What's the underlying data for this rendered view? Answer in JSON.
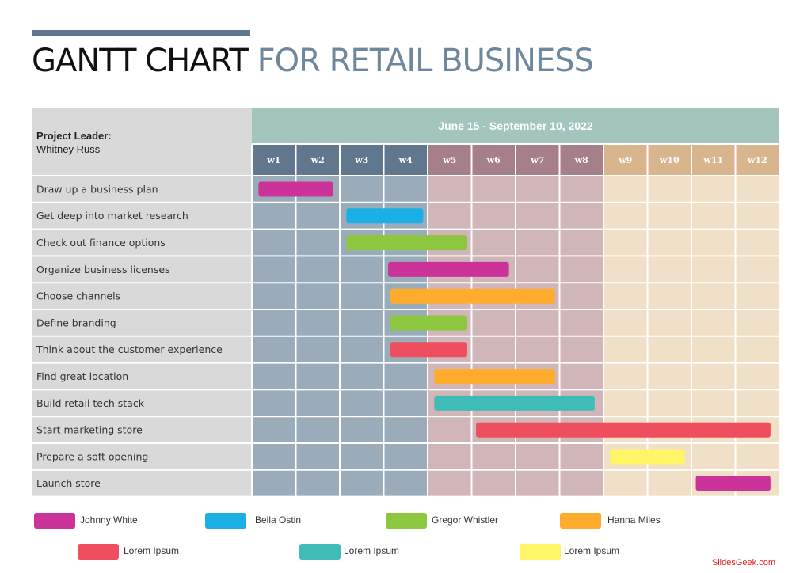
{
  "title": {
    "part1": "GANTT CHART",
    "part2": "FOR RETAIL BUSINESS"
  },
  "leader": {
    "label": "Project Leader:",
    "name": "Whitney Russ"
  },
  "chart_data": {
    "type": "gantt",
    "period_label": "June 15 - September 10, 2022",
    "weeks": [
      "w1",
      "w2",
      "w3",
      "w4",
      "w5",
      "w6",
      "w7",
      "w8",
      "w9",
      "w10",
      "w11",
      "w12"
    ],
    "phase_colors": {
      "header": [
        "#61778e",
        "#61778e",
        "#61778e",
        "#61778e",
        "#a67f89",
        "#a67f89",
        "#a67f89",
        "#a67f89",
        "#d8b58c",
        "#d8b58c",
        "#d8b58c",
        "#d8b58c"
      ],
      "cell": [
        "#9aacba",
        "#9aacba",
        "#9aacba",
        "#9aacba",
        "#d0b5b9",
        "#d0b5b9",
        "#d0b5b9",
        "#d0b5b9",
        "#f0e0c8",
        "#f0e0c8",
        "#f0e0c8",
        "#f0e0c8"
      ]
    },
    "period_color": "#a3c5bd",
    "task_label_bg": "#d9d9d9",
    "tasks": [
      {
        "name": "Draw up a business plan",
        "start": 0.15,
        "end": 1.85,
        "color": "#cc3399"
      },
      {
        "name": "Get deep into market research",
        "start": 2.15,
        "end": 3.9,
        "color": "#1ab0e6"
      },
      {
        "name": "Check out finance options",
        "start": 2.15,
        "end": 4.9,
        "color": "#8dc63f"
      },
      {
        "name": "Organize business licenses",
        "start": 3.1,
        "end": 5.85,
        "color": "#cc3399"
      },
      {
        "name": "Choose channels",
        "start": 3.15,
        "end": 6.9,
        "color": "#ffab2e"
      },
      {
        "name": "Define branding",
        "start": 3.15,
        "end": 4.9,
        "color": "#8dc63f"
      },
      {
        "name": "Think about the customer experience",
        "start": 3.15,
        "end": 4.9,
        "color": "#ef4e5e"
      },
      {
        "name": "Find great location",
        "start": 4.15,
        "end": 6.9,
        "color": "#ffab2e"
      },
      {
        "name": "Build retail tech stack",
        "start": 4.15,
        "end": 7.8,
        "color": "#3fbcb5"
      },
      {
        "name": "Start marketing store",
        "start": 5.1,
        "end": 11.8,
        "color": "#ef4e5e"
      },
      {
        "name": "Prepare a soft opening",
        "start": 8.15,
        "end": 9.85,
        "color": "#fff566"
      },
      {
        "name": "Launch store",
        "start": 10.1,
        "end": 11.8,
        "color": "#cc3399"
      }
    ],
    "legend": [
      {
        "label": "Johnny White",
        "color": "#cc3399"
      },
      {
        "label": "Bella Ostin",
        "color": "#1ab0e6"
      },
      {
        "label": "Gregor Whistler",
        "color": "#8dc63f"
      },
      {
        "label": "Hanna Miles",
        "color": "#ffab2e"
      },
      {
        "label": "Lorem Ipsum",
        "color": "#ef4e5e"
      },
      {
        "label": "Lorem Ipsum",
        "color": "#3fbcb5"
      },
      {
        "label": "Lorem Ipsum",
        "color": "#fff566"
      }
    ]
  },
  "credit": "SlidesGeek.com"
}
